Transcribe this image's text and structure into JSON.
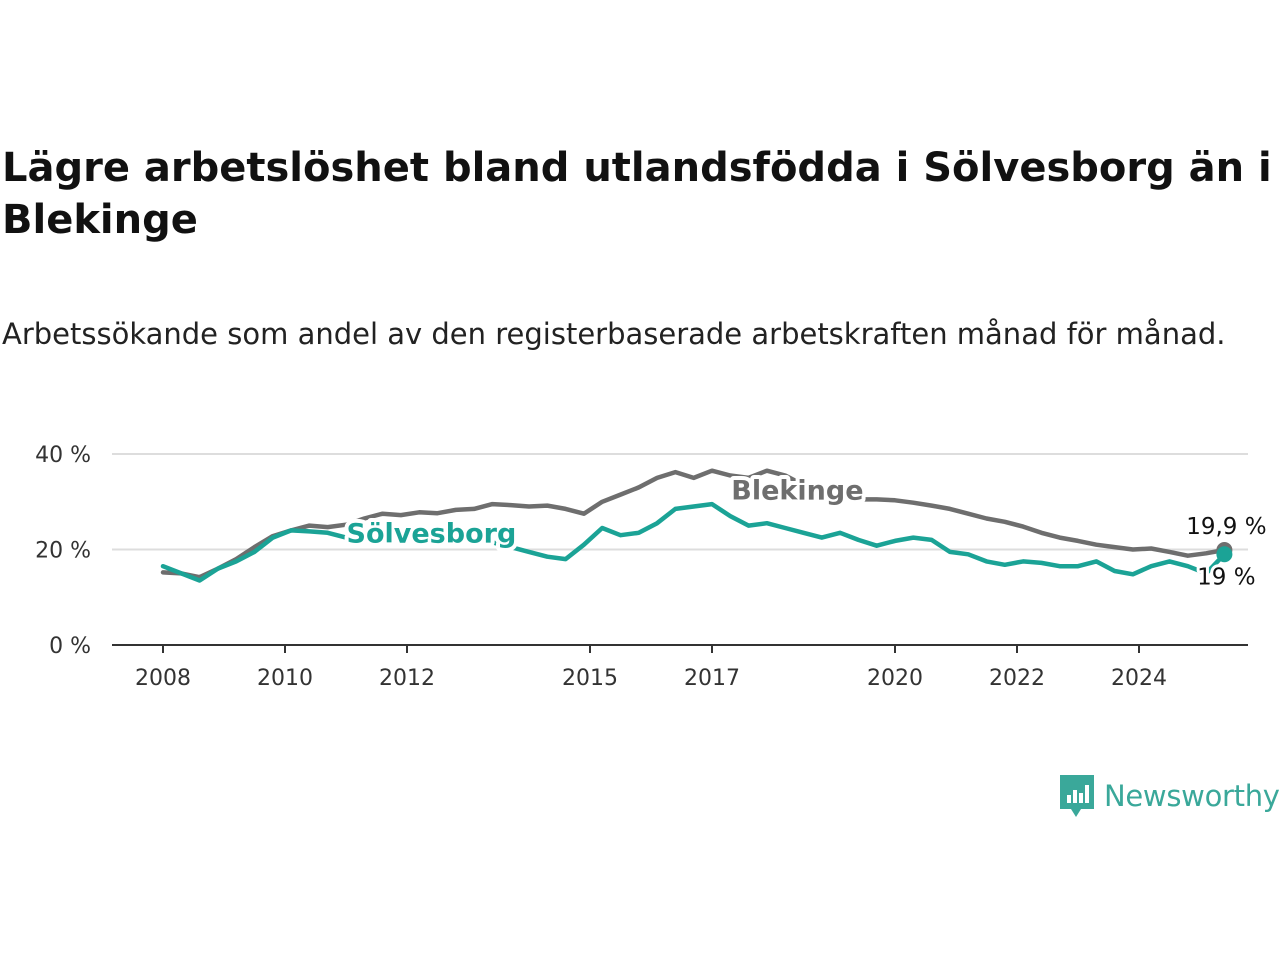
{
  "title": "Lägre arbetslöshet bland utlandsfödda i Sölvesborg än i Blekinge",
  "subtitle": "Arbetssökande som andel av den registerbaserade arbetskraften månad för månad.",
  "brand": {
    "name": "Newsworthy",
    "icon": "newsworthy-logo-icon",
    "color": "#3aa89a"
  },
  "chart_data": {
    "type": "line",
    "title": "Lägre arbetslöshet bland utlandsfödda i Sölvesborg än i Blekinge",
    "subtitle": "Arbetssökande som andel av den registerbaserade arbetskraften månad för månad.",
    "xlabel": "",
    "ylabel": "",
    "xlim": [
      2008,
      2025.6
    ],
    "ylim": [
      0,
      40
    ],
    "y_ticks": [
      {
        "value": 0,
        "label": "0 %"
      },
      {
        "value": 20,
        "label": "20 %"
      },
      {
        "value": 40,
        "label": "40 %"
      }
    ],
    "x_ticks": [
      {
        "value": 2008,
        "label": "2008"
      },
      {
        "value": 2010,
        "label": "2010"
      },
      {
        "value": 2012,
        "label": "2012"
      },
      {
        "value": 2015,
        "label": "2015"
      },
      {
        "value": 2017,
        "label": "2017"
      },
      {
        "value": 2020,
        "label": "2020"
      },
      {
        "value": 2022,
        "label": "2022"
      },
      {
        "value": 2024,
        "label": "2024"
      }
    ],
    "grid": true,
    "legend": "direct labels on lines",
    "series": [
      {
        "name": "Blekinge",
        "color": "#6e6e6e",
        "end_label": "19,9 %",
        "label_position": [
          2018.4,
          30.5
        ],
        "points": [
          [
            2008.0,
            15.2
          ],
          [
            2008.3,
            15.0
          ],
          [
            2008.6,
            14.2
          ],
          [
            2008.9,
            16.0
          ],
          [
            2009.2,
            18.0
          ],
          [
            2009.5,
            20.5
          ],
          [
            2009.8,
            22.8
          ],
          [
            2010.1,
            24.0
          ],
          [
            2010.4,
            25.0
          ],
          [
            2010.7,
            24.7
          ],
          [
            2011.0,
            25.2
          ],
          [
            2011.3,
            26.5
          ],
          [
            2011.6,
            27.5
          ],
          [
            2011.9,
            27.2
          ],
          [
            2012.2,
            27.8
          ],
          [
            2012.5,
            27.6
          ],
          [
            2012.8,
            28.3
          ],
          [
            2013.1,
            28.5
          ],
          [
            2013.4,
            29.5
          ],
          [
            2013.7,
            29.3
          ],
          [
            2014.0,
            29.0
          ],
          [
            2014.3,
            29.2
          ],
          [
            2014.6,
            28.5
          ],
          [
            2014.9,
            27.5
          ],
          [
            2015.2,
            30.0
          ],
          [
            2015.5,
            31.5
          ],
          [
            2015.8,
            33.0
          ],
          [
            2016.1,
            35.0
          ],
          [
            2016.4,
            36.2
          ],
          [
            2016.7,
            35.0
          ],
          [
            2017.0,
            36.5
          ],
          [
            2017.3,
            35.5
          ],
          [
            2017.6,
            35.0
          ],
          [
            2017.9,
            36.5
          ],
          [
            2018.2,
            35.5
          ],
          [
            2018.5,
            33.5
          ],
          [
            2018.8,
            32.0
          ],
          [
            2019.1,
            31.0
          ],
          [
            2019.4,
            30.5
          ],
          [
            2019.7,
            30.5
          ],
          [
            2020.0,
            30.3
          ],
          [
            2020.3,
            29.8
          ],
          [
            2020.6,
            29.2
          ],
          [
            2020.9,
            28.5
          ],
          [
            2021.2,
            27.5
          ],
          [
            2021.5,
            26.5
          ],
          [
            2021.8,
            25.8
          ],
          [
            2022.1,
            24.8
          ],
          [
            2022.4,
            23.5
          ],
          [
            2022.7,
            22.5
          ],
          [
            2023.0,
            21.8
          ],
          [
            2023.3,
            21.0
          ],
          [
            2023.6,
            20.5
          ],
          [
            2023.9,
            20.0
          ],
          [
            2024.2,
            20.2
          ],
          [
            2024.5,
            19.5
          ],
          [
            2024.8,
            18.7
          ],
          [
            2025.1,
            19.2
          ],
          [
            2025.4,
            19.9
          ]
        ]
      },
      {
        "name": "Sölvesborg",
        "color": "#1ba396",
        "end_label": "19 %",
        "label_position": [
          2012.4,
          21.5
        ],
        "points": [
          [
            2008.0,
            16.5
          ],
          [
            2008.3,
            15.0
          ],
          [
            2008.6,
            13.5
          ],
          [
            2008.9,
            16.0
          ],
          [
            2009.2,
            17.5
          ],
          [
            2009.5,
            19.5
          ],
          [
            2009.8,
            22.5
          ],
          [
            2010.1,
            24.0
          ],
          [
            2010.4,
            23.8
          ],
          [
            2010.7,
            23.5
          ],
          [
            2011.0,
            22.5
          ],
          [
            2011.3,
            24.5
          ],
          [
            2011.6,
            22.0
          ],
          [
            2011.9,
            23.0
          ],
          [
            2012.2,
            23.5
          ],
          [
            2012.5,
            23.0
          ],
          [
            2012.8,
            22.5
          ],
          [
            2013.1,
            22.0
          ],
          [
            2013.4,
            21.5
          ],
          [
            2013.7,
            20.5
          ],
          [
            2014.0,
            19.5
          ],
          [
            2014.3,
            18.5
          ],
          [
            2014.6,
            18.0
          ],
          [
            2014.9,
            21.0
          ],
          [
            2015.2,
            24.5
          ],
          [
            2015.5,
            23.0
          ],
          [
            2015.8,
            23.5
          ],
          [
            2016.1,
            25.5
          ],
          [
            2016.4,
            28.5
          ],
          [
            2016.7,
            29.0
          ],
          [
            2017.0,
            29.5
          ],
          [
            2017.3,
            27.0
          ],
          [
            2017.6,
            25.0
          ],
          [
            2017.9,
            25.5
          ],
          [
            2018.2,
            24.5
          ],
          [
            2018.5,
            23.5
          ],
          [
            2018.8,
            22.5
          ],
          [
            2019.1,
            23.5
          ],
          [
            2019.4,
            22.0
          ],
          [
            2019.7,
            20.8
          ],
          [
            2020.0,
            21.8
          ],
          [
            2020.3,
            22.5
          ],
          [
            2020.6,
            22.0
          ],
          [
            2020.9,
            19.5
          ],
          [
            2021.2,
            19.0
          ],
          [
            2021.5,
            17.5
          ],
          [
            2021.8,
            16.8
          ],
          [
            2022.1,
            17.5
          ],
          [
            2022.4,
            17.2
          ],
          [
            2022.7,
            16.5
          ],
          [
            2023.0,
            16.5
          ],
          [
            2023.3,
            17.5
          ],
          [
            2023.6,
            15.5
          ],
          [
            2023.9,
            14.8
          ],
          [
            2024.2,
            16.5
          ],
          [
            2024.5,
            17.5
          ],
          [
            2024.8,
            16.5
          ],
          [
            2025.1,
            15.0
          ],
          [
            2025.4,
            19.0
          ]
        ]
      }
    ]
  }
}
